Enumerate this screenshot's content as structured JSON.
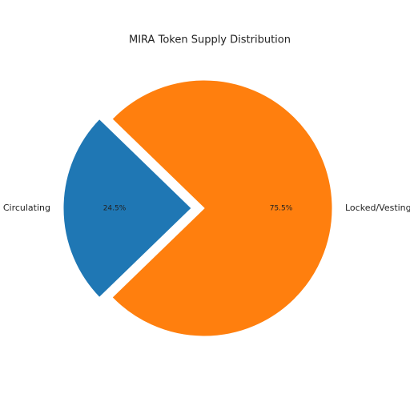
{
  "chart_data": {
    "type": "pie",
    "title": "MIRA Token Supply Distribution",
    "categories": [
      "Circulating",
      "Locked/Vesting"
    ],
    "values": [
      24.5,
      75.5
    ],
    "value_labels": [
      "24.5%",
      "75.5%"
    ],
    "colors": [
      "#1f77b4",
      "#ff7f0e"
    ],
    "explode": [
      0.1,
      0
    ]
  }
}
